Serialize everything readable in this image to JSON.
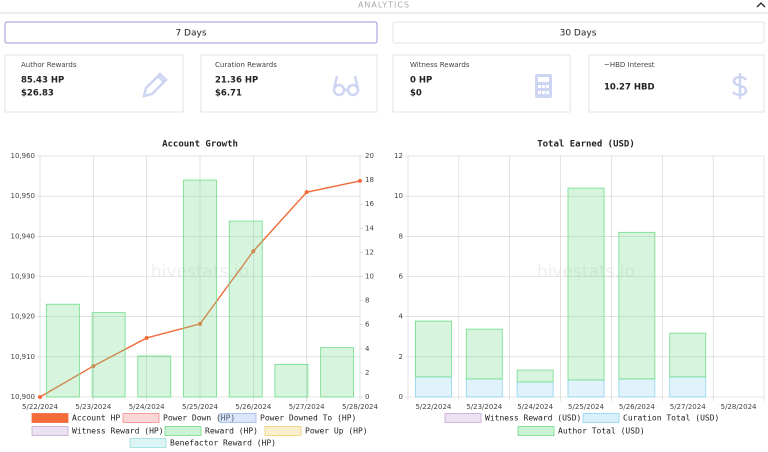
{
  "header": "ANALYTICS",
  "tabs": [
    "7 Days",
    "30 Days"
  ],
  "cards": [
    {
      "label": "Author Rewards",
      "lines": [
        "85.43 HP",
        "$26.83"
      ]
    },
    {
      "label": "Curation Rewards",
      "lines": [
        "21.36 HP",
        "$6.71"
      ]
    },
    {
      "label": "Witness Rewards",
      "lines": [
        "0 HP",
        "$0"
      ]
    },
    {
      "label": "~HBD Interest",
      "lines": [
        "10.27 HBD"
      ]
    }
  ],
  "chart_data": [
    {
      "type": "bar",
      "title": "Account Growth",
      "watermark": "hivestats.io",
      "grid": true,
      "categories": [
        "5/22/2024",
        "5/23/2024",
        "5/24/2024",
        "5/25/2024",
        "5/26/2024",
        "5/27/2024",
        "5/28/2024"
      ],
      "ylim": [
        10900,
        10960
      ],
      "yticks": [
        {
          "value": 10900,
          "label": "10,900"
        },
        {
          "value": 10910,
          "label": "10,910"
        },
        {
          "value": 10920,
          "label": "10,920"
        },
        {
          "value": 10930,
          "label": "10,930"
        },
        {
          "value": 10940,
          "label": "10,940"
        },
        {
          "value": 10950,
          "label": "10,950"
        },
        {
          "value": 10960,
          "label": "10,960"
        }
      ],
      "y2lim": [
        0,
        20
      ],
      "y2ticks": [
        0,
        2,
        4,
        6,
        8,
        10,
        12,
        14,
        16,
        18,
        20
      ],
      "series": [
        {
          "name": "Account HP",
          "type": "line",
          "color": "#f26b3a",
          "values": [
            10900,
            10907.7,
            10914.7,
            10918.2,
            10936.3,
            10951,
            10953.8
          ]
        },
        {
          "name": "Power Down (HP)",
          "color": "#f48a8a",
          "axis": "y2",
          "values": [
            null,
            null,
            null,
            null,
            null,
            null,
            null
          ]
        },
        {
          "name": "Power Downed To (HP)",
          "color": "#9ab8f0",
          "axis": "y2",
          "values": [
            null,
            null,
            null,
            null,
            null,
            null,
            null
          ]
        },
        {
          "name": "Witness Reward (HP)",
          "color": "#c8a8d8",
          "axis": "y2",
          "values": [
            null,
            null,
            null,
            null,
            null,
            null,
            null
          ]
        },
        {
          "name": "Reward (HP)",
          "color": "#6fdc88",
          "axis": "y2",
          "values": [
            7.7,
            7.0,
            3.4,
            18.0,
            14.6,
            2.7,
            4.1
          ]
        },
        {
          "name": "Power Up (HP)",
          "color": "#f0d070",
          "axis": "y2",
          "values": [
            null,
            null,
            null,
            null,
            null,
            null,
            null
          ]
        },
        {
          "name": "Benefactor Reward (HP)",
          "color": "#9ae0e0",
          "axis": "y2",
          "values": [
            null,
            null,
            null,
            null,
            null,
            null,
            null
          ]
        }
      ]
    },
    {
      "type": "bar",
      "stacked": true,
      "title": "Total Earned (USD)",
      "watermark": "hivestats.io",
      "grid": true,
      "categories": [
        "5/22/2024",
        "5/23/2024",
        "5/24/2024",
        "5/25/2024",
        "5/26/2024",
        "5/27/2024",
        "5/28/2024"
      ],
      "ylim": [
        0,
        12
      ],
      "yticks": [
        0,
        2,
        4,
        6,
        8,
        10,
        12
      ],
      "series": [
        {
          "name": "Witness Reward (USD)",
          "color": "#c8a8d8",
          "values": [
            null,
            null,
            null,
            null,
            null,
            null,
            null
          ]
        },
        {
          "name": "Curation Total (USD)",
          "color": "#8fd3f0",
          "values": [
            1.0,
            0.9,
            0.75,
            0.85,
            0.9,
            1.0,
            0
          ]
        },
        {
          "name": "Author Total (USD)",
          "color": "#6fdc88",
          "values": [
            2.78,
            2.48,
            0.59,
            9.55,
            7.3,
            2.18,
            0
          ]
        }
      ]
    }
  ]
}
